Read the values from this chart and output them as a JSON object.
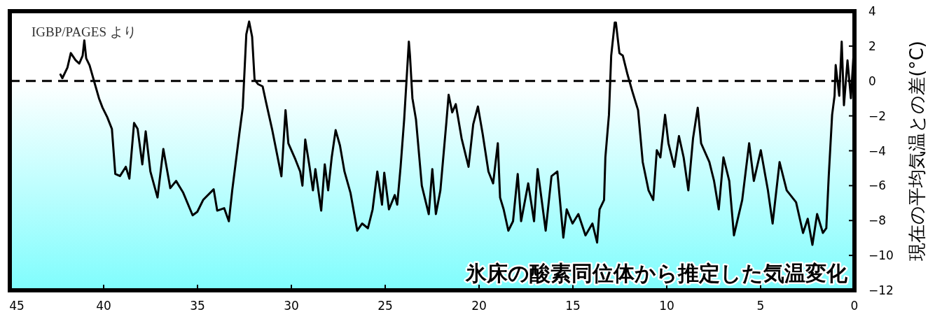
{
  "chart_data": {
    "type": "line",
    "title": "氷床の酸素同位体から推定した気温変化",
    "ylabel": "現在の平均気温との差(°C)",
    "annotations": [
      "IGBP/PAGES より"
    ],
    "x": [
      42.3,
      42.2,
      41.93,
      41.75,
      41.5,
      41.3,
      41.12,
      41.03,
      40.93,
      40.75,
      40.5,
      40.25,
      40.06,
      39.81,
      39.56,
      39.38,
      39.13,
      38.82,
      38.63,
      38.38,
      38.19,
      37.94,
      37.76,
      37.51,
      37.13,
      36.82,
      36.45,
      36.14,
      35.76,
      35.26,
      35.01,
      34.7,
      34.14,
      33.95,
      33.58,
      33.33,
      33.15,
      32.77,
      32.59,
      32.4,
      32.25,
      32.09,
      31.96,
      31.78,
      31.53,
      31.34,
      31.03,
      30.53,
      30.31,
      30.16,
      29.78,
      29.53,
      29.41,
      29.26,
      29.03,
      28.85,
      28.72,
      28.41,
      28.22,
      28.04,
      27.85,
      27.64,
      27.41,
      27.17,
      26.85,
      26.49,
      26.23,
      25.92,
      25.67,
      25.42,
      25.17,
      25.05,
      24.8,
      24.49,
      24.36,
      24.18,
      23.99,
      23.74,
      23.68,
      23.55,
      23.36,
      23.05,
      22.68,
      22.49,
      22.3,
      22.06,
      21.74,
      21.62,
      21.43,
      21.24,
      20.93,
      20.56,
      20.31,
      20.06,
      19.81,
      19.5,
      19.25,
      19.0,
      18.88,
      18.69,
      18.44,
      18.19,
      17.94,
      17.76,
      17.38,
      17.07,
      16.88,
      16.45,
      16.14,
      15.83,
      15.51,
      15.33,
      15.02,
      14.71,
      14.33,
      13.96,
      13.71,
      13.58,
      13.34,
      13.27,
      13.08,
      12.96,
      12.77,
      12.71,
      12.52,
      12.34,
      12.09,
      11.84,
      11.53,
      11.28,
      10.97,
      10.72,
      10.53,
      10.34,
      10.09,
      9.91,
      9.6,
      9.35,
      9.1,
      8.85,
      8.6,
      8.35,
      8.17,
      7.73,
      7.48,
      7.23,
      6.98,
      6.67,
      6.42,
      5.98,
      5.61,
      5.36,
      4.99,
      4.61,
      4.36,
      3.99,
      3.61,
      3.11,
      2.74,
      2.49,
      2.24,
      1.99,
      1.68,
      1.5,
      1.37,
      1.19,
      1.06,
      1.0,
      0.81,
      0.68,
      0.56,
      0.37,
      0.19,
      0.06,
      0.02
    ],
    "values": [
      0.37,
      0.16,
      0.77,
      1.6,
      1.2,
      1.0,
      1.45,
      2.33,
      1.3,
      0.9,
      -0.05,
      -0.99,
      -1.53,
      -2.07,
      -2.75,
      -5.33,
      -5.45,
      -4.92,
      -5.6,
      -2.41,
      -2.75,
      -4.78,
      -2.89,
      -5.19,
      -6.68,
      -3.9,
      -6.14,
      -5.73,
      -6.41,
      -7.7,
      -7.5,
      -6.82,
      -6.21,
      -7.43,
      -7.29,
      -8.04,
      -6.27,
      -3.02,
      -1.53,
      2.67,
      3.41,
      2.53,
      0.09,
      -0.18,
      -0.31,
      -1.26,
      -2.75,
      -5.46,
      -1.67,
      -3.57,
      -4.51,
      -5.19,
      -6.0,
      -3.36,
      -4.92,
      -6.27,
      -5.05,
      -7.43,
      -4.78,
      -6.27,
      -4.38,
      -2.82,
      -3.7,
      -5.19,
      -6.41,
      -8.58,
      -8.17,
      -8.44,
      -7.36,
      -5.19,
      -7.09,
      -5.26,
      -7.36,
      -6.54,
      -7.09,
      -4.92,
      -2.21,
      2.26,
      1.45,
      -0.99,
      -2.21,
      -6.0,
      -7.63,
      -5.05,
      -7.63,
      -6.27,
      -2.35,
      -0.79,
      -1.8,
      -1.33,
      -3.29,
      -4.92,
      -2.48,
      -1.46,
      -3.02,
      -5.19,
      -5.87,
      -3.57,
      -6.68,
      -7.36,
      -8.58,
      -8.04,
      -5.33,
      -8.04,
      -5.87,
      -8.04,
      -5.05,
      -8.58,
      -5.46,
      -5.19,
      -8.98,
      -7.36,
      -8.17,
      -7.63,
      -8.85,
      -8.17,
      -9.26,
      -7.36,
      -6.82,
      -4.38,
      -1.94,
      1.45,
      3.35,
      3.35,
      1.59,
      1.45,
      0.37,
      -0.58,
      -1.67,
      -4.65,
      -6.27,
      -6.82,
      -3.97,
      -4.38,
      -1.94,
      -3.57,
      -4.92,
      -3.16,
      -4.38,
      -6.27,
      -3.29,
      -1.53,
      -3.57,
      -4.65,
      -5.73,
      -7.36,
      -4.38,
      -5.73,
      -8.85,
      -6.82,
      -3.57,
      -5.73,
      -3.97,
      -6.27,
      -8.17,
      -4.65,
      -6.27,
      -6.95,
      -8.71,
      -7.9,
      -9.39,
      -7.63,
      -8.71,
      -8.44,
      -5.46,
      -1.94,
      -0.85,
      0.91,
      -0.85,
      2.26,
      -1.39,
      1.18,
      -0.99,
      1.31,
      -1.8
    ],
    "color": "#000000",
    "xlim": [
      45,
      0
    ],
    "ylim": [
      -12,
      4
    ],
    "xticks": [
      45,
      40,
      35,
      30,
      25,
      20,
      15,
      10,
      5,
      0
    ],
    "yticks": [
      4,
      2,
      0,
      -2,
      -4,
      -6,
      -8,
      -10,
      -12
    ],
    "bands": [
      {
        "axis": "y",
        "from": -12,
        "to": 0,
        "color": "#7ffdfd"
      }
    ],
    "ref_lines": [
      {
        "axis": "y",
        "value": 0,
        "line_style": "dashed",
        "color": "#000000"
      }
    ]
  }
}
